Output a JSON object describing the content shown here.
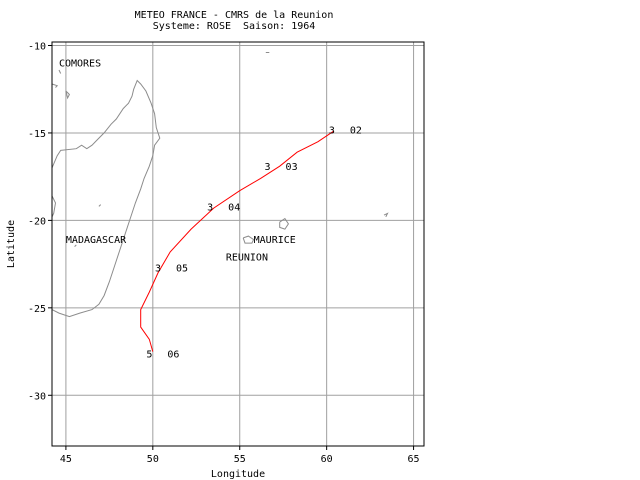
{
  "header": {
    "title_line1": "METEO FRANCE - CMRS de la Reunion",
    "title_line2": "Systeme: ROSE  Saison: 1964"
  },
  "chart_data": {
    "type": "map",
    "xlabel": "Longitude",
    "ylabel": "Latitude",
    "xlim": [
      44.2,
      65.6
    ],
    "ylim": [
      -32.9,
      -9.8
    ],
    "x_ticks": [
      45,
      50,
      55,
      60,
      65
    ],
    "y_ticks": [
      -10,
      -15,
      -20,
      -25,
      -30
    ],
    "grid": true,
    "track_color": "#ff0000",
    "coast_color": "#8c8c8c",
    "grid_color": "#a0a0a0",
    "place_labels": [
      {
        "text": "COMORES",
        "lon": 44.6,
        "lat": -11.2
      },
      {
        "text": "MADAGASCAR",
        "lon": 45.0,
        "lat": -21.3
      },
      {
        "text": "MAURICE",
        "lon": 55.8,
        "lat": -21.3
      },
      {
        "text": "REUNION",
        "lon": 54.2,
        "lat": -22.3
      }
    ],
    "track": [
      {
        "lon": 60.4,
        "lat": -14.9
      },
      {
        "lon": 59.5,
        "lat": -15.5
      },
      {
        "lon": 58.3,
        "lat": -16.1
      },
      {
        "lon": 57.3,
        "lat": -16.9
      },
      {
        "lon": 56.2,
        "lat": -17.6
      },
      {
        "lon": 55.0,
        "lat": -18.3
      },
      {
        "lon": 53.5,
        "lat": -19.3
      },
      {
        "lon": 52.2,
        "lat": -20.5
      },
      {
        "lon": 51.0,
        "lat": -21.8
      },
      {
        "lon": 50.3,
        "lat": -23.0
      },
      {
        "lon": 49.8,
        "lat": -24.1
      },
      {
        "lon": 49.3,
        "lat": -25.1
      },
      {
        "lon": 49.3,
        "lat": -26.1
      },
      {
        "lon": 49.8,
        "lat": -26.8
      },
      {
        "lon": 50.0,
        "lat": -27.5
      }
    ],
    "positions": [
      {
        "lon": 60.3,
        "lat": -14.8,
        "intensity": "3",
        "day": "02"
      },
      {
        "lon": 56.6,
        "lat": -16.9,
        "intensity": "3",
        "day": "03"
      },
      {
        "lon": 53.3,
        "lat": -19.2,
        "intensity": "3",
        "day": "04"
      },
      {
        "lon": 50.3,
        "lat": -22.7,
        "intensity": "3",
        "day": "05"
      },
      {
        "lon": 49.8,
        "lat": -27.6,
        "intensity": "5",
        "day": "06"
      }
    ],
    "coastlines": [
      [
        [
          44.2,
          -17.0
        ],
        [
          44.5,
          -16.3
        ],
        [
          44.7,
          -16.0
        ],
        [
          45.6,
          -15.9
        ],
        [
          45.9,
          -15.7
        ],
        [
          46.2,
          -15.9
        ],
        [
          46.5,
          -15.7
        ],
        [
          46.8,
          -15.4
        ],
        [
          47.2,
          -15.0
        ],
        [
          47.6,
          -14.5
        ],
        [
          47.9,
          -14.2
        ],
        [
          48.3,
          -13.6
        ],
        [
          48.6,
          -13.3
        ],
        [
          48.8,
          -12.9
        ],
        [
          48.9,
          -12.5
        ],
        [
          49.1,
          -12.0
        ],
        [
          49.3,
          -12.2
        ],
        [
          49.6,
          -12.6
        ],
        [
          49.9,
          -13.3
        ],
        [
          50.1,
          -13.9
        ],
        [
          50.2,
          -14.7
        ],
        [
          50.4,
          -15.3
        ],
        [
          50.1,
          -15.7
        ],
        [
          50.0,
          -16.3
        ],
        [
          49.8,
          -16.9
        ],
        [
          49.5,
          -17.6
        ],
        [
          49.3,
          -18.2
        ],
        [
          49.0,
          -19.0
        ],
        [
          48.7,
          -19.9
        ],
        [
          48.4,
          -20.8
        ],
        [
          48.1,
          -21.7
        ],
        [
          47.8,
          -22.6
        ],
        [
          47.5,
          -23.5
        ],
        [
          47.2,
          -24.3
        ],
        [
          46.9,
          -24.8
        ],
        [
          46.5,
          -25.1
        ],
        [
          45.8,
          -25.3
        ],
        [
          45.2,
          -25.5
        ],
        [
          44.6,
          -25.3
        ],
        [
          44.2,
          -25.1
        ]
      ],
      [
        [
          44.2,
          -18.6
        ],
        [
          44.4,
          -19.0
        ],
        [
          44.3,
          -19.6
        ],
        [
          44.2,
          -19.8
        ]
      ],
      [
        [
          45.0,
          -12.6
        ],
        [
          45.2,
          -12.8
        ],
        [
          45.1,
          -13.0
        ],
        [
          45.0,
          -12.6
        ]
      ],
      [
        [
          44.2,
          -12.2
        ],
        [
          44.5,
          -12.3
        ],
        [
          44.4,
          -12.4
        ]
      ],
      [
        [
          44.6,
          -11.4
        ],
        [
          44.7,
          -11.6
        ]
      ],
      [
        [
          55.2,
          -21.0
        ],
        [
          55.5,
          -20.9
        ],
        [
          55.8,
          -21.1
        ],
        [
          55.7,
          -21.3
        ],
        [
          55.3,
          -21.3
        ],
        [
          55.2,
          -21.0
        ]
      ],
      [
        [
          57.3,
          -20.1
        ],
        [
          57.6,
          -19.9
        ],
        [
          57.8,
          -20.2
        ],
        [
          57.6,
          -20.5
        ],
        [
          57.3,
          -20.4
        ],
        [
          57.3,
          -20.1
        ]
      ],
      [
        [
          63.3,
          -19.7
        ],
        [
          63.5,
          -19.6
        ],
        [
          63.4,
          -19.8
        ]
      ],
      [
        [
          56.5,
          -10.4
        ],
        [
          56.7,
          -10.4
        ]
      ],
      [
        [
          46.9,
          -19.2
        ],
        [
          47.0,
          -19.1
        ]
      ],
      [
        [
          45.5,
          -21.5
        ],
        [
          45.6,
          -21.4
        ]
      ]
    ]
  }
}
